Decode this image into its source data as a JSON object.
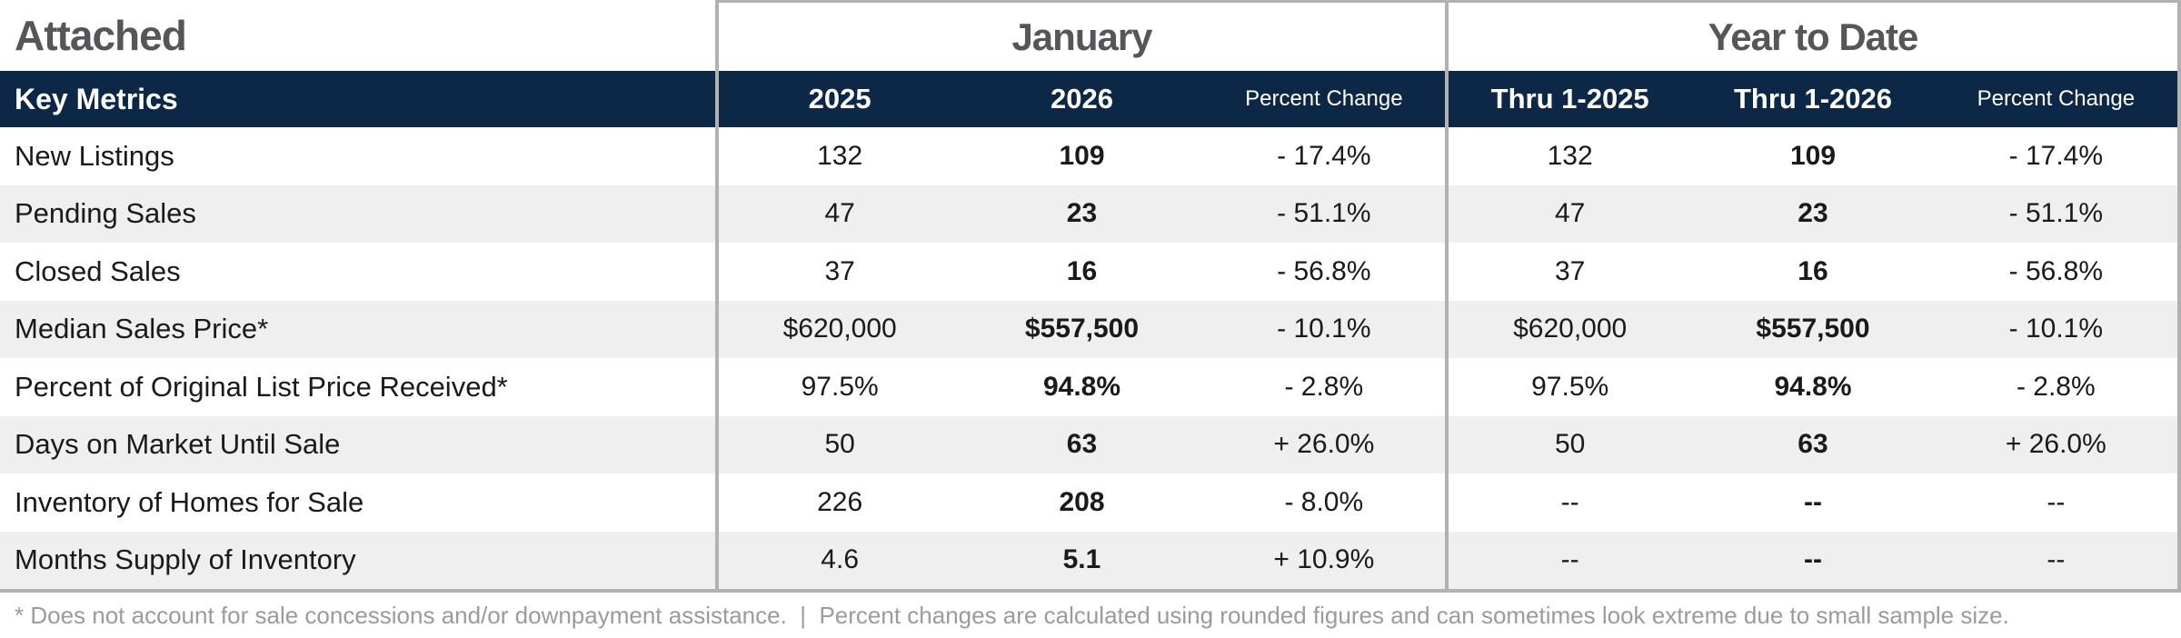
{
  "title": "Attached",
  "sections": {
    "january": {
      "label": "January",
      "columns": [
        "2025",
        "2026",
        "Percent Change"
      ]
    },
    "year_to_date": {
      "label": "Year to Date",
      "columns": [
        "Thru 1-2025",
        "Thru 1-2026",
        "Percent Change"
      ]
    }
  },
  "header": {
    "key_metrics_label": "Key Metrics"
  },
  "rows": [
    {
      "label": "New Listings",
      "jan": [
        "132",
        "109",
        "- 17.4%"
      ],
      "ytd": [
        "132",
        "109",
        "- 17.4%"
      ]
    },
    {
      "label": "Pending Sales",
      "jan": [
        "47",
        "23",
        "- 51.1%"
      ],
      "ytd": [
        "47",
        "23",
        "- 51.1%"
      ]
    },
    {
      "label": "Closed Sales",
      "jan": [
        "37",
        "16",
        "- 56.8%"
      ],
      "ytd": [
        "37",
        "16",
        "- 56.8%"
      ]
    },
    {
      "label": "Median Sales Price*",
      "jan": [
        "$620,000",
        "$557,500",
        "- 10.1%"
      ],
      "ytd": [
        "$620,000",
        "$557,500",
        "- 10.1%"
      ]
    },
    {
      "label": "Percent of Original List Price Received*",
      "jan": [
        "97.5%",
        "94.8%",
        "- 2.8%"
      ],
      "ytd": [
        "97.5%",
        "94.8%",
        "- 2.8%"
      ]
    },
    {
      "label": "Days on Market Until Sale",
      "jan": [
        "50",
        "63",
        "+ 26.0%"
      ],
      "ytd": [
        "50",
        "63",
        "+ 26.0%"
      ]
    },
    {
      "label": "Inventory of Homes for Sale",
      "jan": [
        "226",
        "208",
        "- 8.0%"
      ],
      "ytd": [
        "--",
        "--",
        "--"
      ]
    },
    {
      "label": "Months Supply of Inventory",
      "jan": [
        "4.6",
        "5.1",
        "+ 10.9%"
      ],
      "ytd": [
        "--",
        "--",
        "--"
      ]
    }
  ],
  "footnote": "* Does not account for sale concessions and/or downpayment assistance.  |  Percent changes are calculated using rounded figures and can sometimes look extreme due to small sample size.",
  "colors": {
    "header_navy": "#0d2847",
    "alt_row_gray": "#efefef",
    "border_gray": "#b1b1b1",
    "title_gray": "#545659",
    "footnote_gray": "#9b9b9b"
  }
}
